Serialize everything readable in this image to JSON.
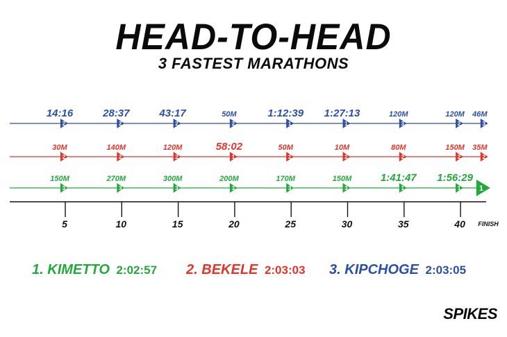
{
  "header": {
    "title": "HEAD-TO-HEAD",
    "subtitle": "3 FASTEST MARATHONS"
  },
  "colors": {
    "blue": "#2b4ea6",
    "red": "#e0352a",
    "green": "#22a83b",
    "axis": "#111111"
  },
  "chart_data": {
    "type": "line",
    "xlim": [
      0,
      42.195
    ],
    "x_ticks": [
      "5",
      "10",
      "15",
      "20",
      "25",
      "30",
      "35",
      "40",
      "FINISH"
    ],
    "x_tick_values": [
      5,
      10,
      15,
      20,
      25,
      30,
      35,
      40,
      42.195
    ],
    "series": [
      {
        "name": "KIPCHOGE",
        "color": "blue",
        "markers": [
          {
            "km": 5,
            "label": "14:16",
            "pos": "2"
          },
          {
            "km": 10,
            "label": "28:37",
            "pos": "2"
          },
          {
            "km": 15,
            "label": "43:17",
            "pos": "2"
          },
          {
            "km": 20,
            "label": "50M",
            "pos": "2"
          },
          {
            "km": 25,
            "label": "1:12:39",
            "pos": "1"
          },
          {
            "km": 30,
            "label": "1:27:13",
            "pos": "1"
          },
          {
            "km": 35,
            "label": "120M",
            "pos": "3"
          },
          {
            "km": 40,
            "label": "120M",
            "pos": "2"
          },
          {
            "km": 42.195,
            "label": "46M",
            "pos": "3"
          }
        ]
      },
      {
        "name": "BEKELE",
        "color": "red",
        "markers": [
          {
            "km": 5,
            "label": "30M",
            "pos": "2"
          },
          {
            "km": 10,
            "label": "140M",
            "pos": "2"
          },
          {
            "km": 15,
            "label": "120M",
            "pos": "2"
          },
          {
            "km": 20,
            "label": "58:02",
            "pos": "1"
          },
          {
            "km": 25,
            "label": "50M",
            "pos": "2"
          },
          {
            "km": 30,
            "label": "10M",
            "pos": "2"
          },
          {
            "km": 35,
            "label": "80M",
            "pos": "2"
          },
          {
            "km": 40,
            "label": "150M",
            "pos": "2"
          },
          {
            "km": 42.195,
            "label": "35M",
            "pos": "2"
          }
        ]
      },
      {
        "name": "KIMETTO",
        "color": "green",
        "markers": [
          {
            "km": 5,
            "label": "150M",
            "pos": "3"
          },
          {
            "km": 10,
            "label": "270M",
            "pos": "3"
          },
          {
            "km": 15,
            "label": "300M",
            "pos": "3"
          },
          {
            "km": 20,
            "label": "200M",
            "pos": "3"
          },
          {
            "km": 25,
            "label": "170M",
            "pos": "3"
          },
          {
            "km": 30,
            "label": "150M",
            "pos": "3"
          },
          {
            "km": 35,
            "label": "1:41:47",
            "pos": "1"
          },
          {
            "km": 40,
            "label": "1:56:29",
            "pos": "1"
          },
          {
            "km": 42.195,
            "label": "",
            "pos": "1"
          }
        ]
      }
    ]
  },
  "legend": [
    {
      "rank": "1.",
      "name": "KIMETTO",
      "time": "2:02:57",
      "color": "green"
    },
    {
      "rank": "2.",
      "name": "BEKELE",
      "time": "2:03:03",
      "color": "red"
    },
    {
      "rank": "3.",
      "name": "KIPCHOGE",
      "time": "2:03:05",
      "color": "blue"
    }
  ],
  "brand": "SPIKES"
}
